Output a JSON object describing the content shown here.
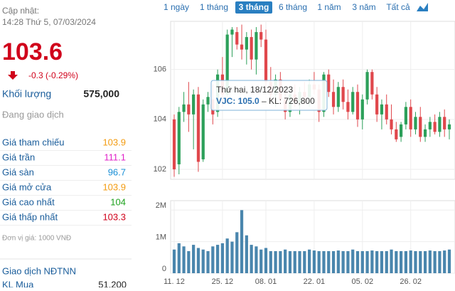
{
  "info": {
    "updated_label": "Cập nhật:",
    "updated_time": "14:28 Thứ 5, 07/03/2024",
    "price": "103.6",
    "change": "-0.3 (-0.29%)",
    "volume_label": "Khối lượng",
    "volume": "575,000",
    "status": "Đang giao dịch",
    "rows": [
      {
        "label": "Giá tham chiếu",
        "value": "103.9",
        "color": "#f39c12"
      },
      {
        "label": "Giá trần",
        "value": "111.1",
        "color": "#e020c8"
      },
      {
        "label": "Giá sàn",
        "value": "96.7",
        "color": "#1a8fd6"
      },
      {
        "label": "Giá mở cửa",
        "value": "103.9",
        "color": "#f39c12"
      },
      {
        "label": "Giá cao nhất",
        "value": "104",
        "color": "#1aa01a"
      },
      {
        "label": "Giá thấp nhất",
        "value": "103.3",
        "color": "#d0021b"
      }
    ],
    "unit": "Đơn vị giá: 1000 VNĐ",
    "foreign_title": "Giao dịch NĐTNN",
    "buy_label": "KL Mua",
    "buy_value": "51,200"
  },
  "tabs": [
    "1 ngày",
    "1 tháng",
    "3 tháng",
    "6 tháng",
    "1 năm",
    "3 năm",
    "Tất cả"
  ],
  "active_tab": 2,
  "tooltip": {
    "date": "Thứ hai, 18/12/2023",
    "price": "VJC: 105.0",
    "volume": " – KL: 726,800"
  },
  "chart_data": {
    "type": "candlestick",
    "up_color": "#2ca05a",
    "down_color": "#e0474c",
    "volume_color": "#4a86ad",
    "categories": [
      "11. 12",
      null,
      null,
      null,
      null,
      null,
      null,
      null,
      null,
      null,
      "25. 12",
      null,
      null,
      null,
      null,
      null,
      null,
      null,
      null,
      "08. 01",
      null,
      null,
      null,
      null,
      null,
      null,
      null,
      null,
      null,
      "22. 01",
      null,
      null,
      null,
      null,
      null,
      null,
      null,
      null,
      null,
      "05. 02",
      null,
      null,
      null,
      null,
      null,
      null,
      null,
      null,
      null,
      "26. 02",
      null,
      null,
      null,
      null,
      null,
      null,
      null,
      null
    ],
    "open": [
      104.0,
      102.2,
      104.3,
      104.6,
      104.2,
      105.0,
      102.4,
      104.6,
      104.8,
      104.3,
      105.8,
      105.0,
      107.4,
      107.5,
      107.0,
      106.8,
      107.3,
      106.4,
      107.5,
      107.2,
      105.5,
      105.0,
      105.6,
      104.8,
      104.3,
      105.0,
      104.7,
      105.1,
      104.9,
      105.4,
      105.2,
      104.3,
      105.8,
      105.1,
      104.5,
      105.3,
      104.7,
      104.3,
      105.1,
      104.0,
      104.8,
      105.9,
      105.0,
      104.2,
      104.6,
      104.0,
      103.6,
      103.3,
      103.8,
      104.5,
      103.6,
      104.1,
      103.3,
      103.6,
      103.9,
      103.5,
      104.1,
      103.6
    ],
    "high": [
      104.2,
      104.5,
      105.1,
      105.5,
      105.2,
      105.3,
      104.8,
      105.1,
      105.4,
      106.0,
      106.5,
      107.6,
      107.7,
      107.7,
      107.8,
      107.5,
      107.6,
      107.7,
      107.8,
      107.6,
      106.1,
      105.8,
      105.9,
      105.3,
      105.2,
      105.4,
      105.3,
      105.5,
      105.6,
      105.9,
      105.4,
      105.9,
      106.0,
      105.6,
      105.5,
      105.6,
      105.2,
      105.3,
      105.4,
      105.0,
      106.0,
      106.0,
      105.3,
      104.8,
      105.0,
      104.6,
      103.9,
      103.9,
      104.7,
      104.8,
      104.3,
      104.5,
      103.8,
      104.1,
      104.2,
      104.3,
      104.4,
      104.0
    ],
    "low": [
      101.7,
      101.8,
      103.9,
      103.5,
      102.8,
      101.9,
      102.3,
      104.3,
      103.8,
      104.1,
      104.5,
      104.9,
      106.5,
      106.8,
      106.4,
      106.2,
      106.0,
      105.8,
      106.9,
      105.2,
      104.8,
      104.5,
      104.6,
      104.0,
      104.1,
      104.5,
      104.2,
      104.6,
      104.5,
      105.0,
      103.9,
      104.1,
      104.9,
      104.2,
      104.3,
      104.4,
      104.0,
      104.2,
      103.7,
      103.6,
      104.6,
      104.8,
      103.9,
      103.6,
      103.8,
      103.4,
      103.1,
      103.1,
      103.6,
      103.3,
      103.4,
      103.1,
      103.1,
      103.3,
      103.4,
      103.3,
      103.3,
      103.2
    ],
    "close": [
      102.0,
      104.3,
      104.6,
      104.2,
      105.0,
      102.3,
      104.6,
      104.9,
      104.2,
      105.8,
      105.0,
      107.4,
      107.6,
      107.0,
      106.8,
      107.3,
      106.4,
      107.5,
      107.2,
      105.5,
      105.0,
      105.6,
      104.8,
      104.3,
      105.0,
      104.7,
      105.1,
      104.9,
      105.4,
      105.2,
      104.3,
      105.8,
      105.1,
      104.5,
      105.3,
      104.7,
      104.3,
      105.1,
      104.0,
      104.8,
      105.9,
      105.0,
      104.2,
      104.6,
      104.0,
      103.6,
      103.2,
      103.8,
      104.5,
      103.6,
      104.1,
      103.3,
      103.6,
      103.9,
      103.5,
      104.1,
      103.6,
      103.8
    ],
    "volume": [
      750000,
      950000,
      850000,
      700000,
      900000,
      800000,
      750000,
      700000,
      850000,
      900000,
      950000,
      1100000,
      1000000,
      1300000,
      2000000,
      1200000,
      900000,
      850000,
      750000,
      800000,
      700000,
      700000,
      700000,
      750000,
      700000,
      700000,
      700000,
      700000,
      750000,
      720000,
      700000,
      700000,
      700000,
      700000,
      720000,
      700000,
      700000,
      750000,
      700000,
      700000,
      700000,
      720000,
      700000,
      700000,
      700000,
      750000,
      700000,
      700000,
      700000,
      720000,
      700000,
      700000,
      700000,
      720000,
      700000,
      700000,
      720000,
      750000
    ],
    "ylim": [
      101.6,
      107.93
    ],
    "yticks": [
      102,
      104,
      106
    ],
    "y2lim": [
      0,
      2300000
    ],
    "y2ticks": [
      {
        "value": 0,
        "label": "0"
      },
      {
        "value": 1000000,
        "label": "1M"
      },
      {
        "value": 2000000,
        "label": "2M"
      }
    ],
    "grid": true
  }
}
